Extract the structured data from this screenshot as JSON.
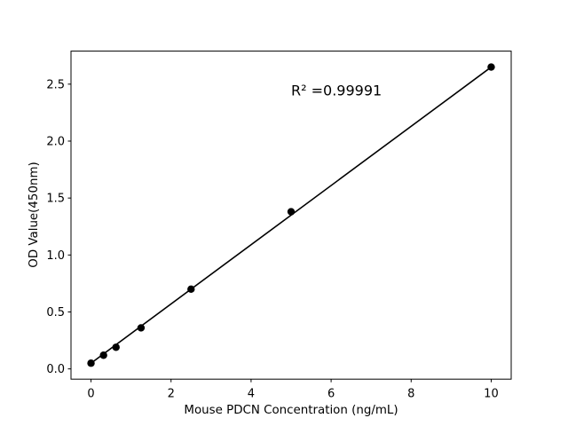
{
  "chart_data": {
    "type": "scatter",
    "title": "",
    "xlabel": "Mouse PDCN Concentration (ng/mL)",
    "ylabel": "OD Value(450nm)",
    "x": [
      0,
      0.313,
      0.625,
      1.25,
      2.5,
      5,
      10
    ],
    "y": [
      0.05,
      0.12,
      0.19,
      0.36,
      0.7,
      1.38,
      2.65
    ],
    "fit_line": {
      "x": [
        0,
        10
      ],
      "y": [
        0.05,
        2.65
      ]
    },
    "annotation": {
      "text": "R² =0.99991",
      "x": 5.0,
      "y": 2.4
    },
    "xticks": {
      "values": [
        0,
        2,
        4,
        6,
        8,
        10
      ],
      "labels": [
        "0",
        "2",
        "4",
        "6",
        "8",
        "10"
      ]
    },
    "yticks": {
      "values": [
        0,
        0.5,
        1.0,
        1.5,
        2.0,
        2.5
      ],
      "labels": [
        "0.0",
        "0.5",
        "1.0",
        "1.5",
        "2.0",
        "2.5"
      ]
    },
    "xlim": [
      -0.5,
      10.5
    ],
    "ylim": [
      -0.09,
      2.79
    ],
    "grid": false,
    "legend_position": "none",
    "colors": {
      "marker": "#000000",
      "line": "#000000",
      "text": "#000000",
      "axis": "#000000",
      "background": "#ffffff"
    }
  }
}
